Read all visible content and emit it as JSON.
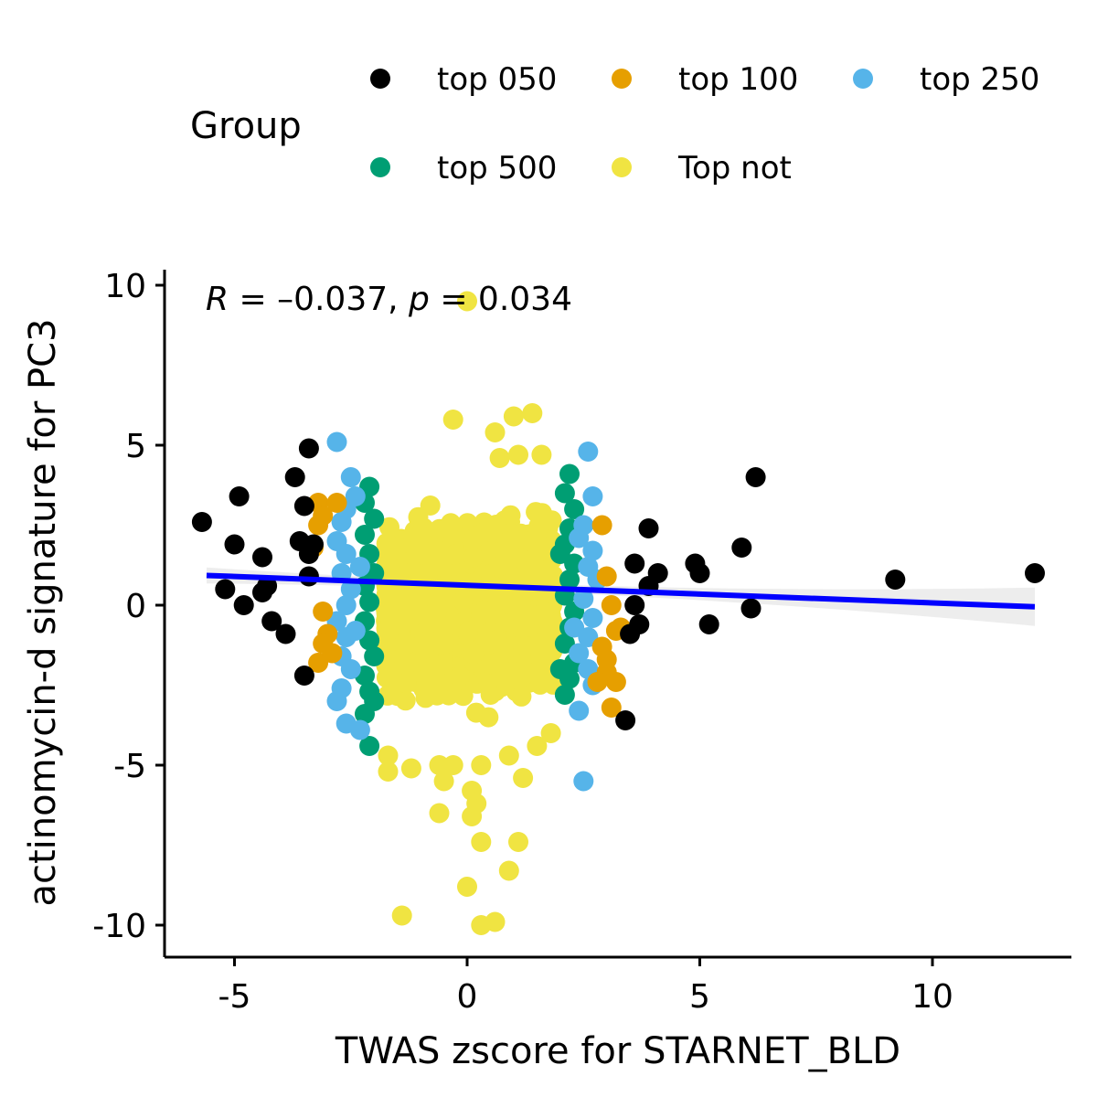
{
  "chart_data": {
    "type": "scatter",
    "title": "",
    "xlabel": "TWAS zscore for STARNET_BLD",
    "ylabel": "actinomycin-d signature for PC3",
    "xlim": [
      -6.5,
      13.0
    ],
    "ylim": [
      -11.0,
      10.5
    ],
    "x_ticks": [
      -5,
      0,
      5,
      10
    ],
    "x_tick_labels": [
      "-5",
      "0",
      "5",
      "10"
    ],
    "y_ticks": [
      10,
      5,
      0,
      -5,
      -10
    ],
    "y_tick_labels": [
      "10",
      "5",
      "0",
      "-5",
      "-10"
    ],
    "grid": false,
    "legend": {
      "title": "Group",
      "position": "top",
      "entries": [
        {
          "name": "top 050",
          "color": "#000000"
        },
        {
          "name": "top 100",
          "color": "#E69F00"
        },
        {
          "name": "top 250",
          "color": "#56B4E9"
        },
        {
          "name": "top 500",
          "color": "#009E73"
        },
        {
          "name": "Top not",
          "color": "#F0E442"
        }
      ]
    },
    "annotation": {
      "r_label": "R",
      "r_text": " = –0.037, ",
      "p_label": "p",
      "p_text": " = 0.034"
    },
    "regression": {
      "color": "#0000FF",
      "x": [
        -5.6,
        12.2
      ],
      "y": [
        0.93,
        -0.05
      ],
      "ci_upper_end": 0.6,
      "ci_lower_end": -0.7
    },
    "series": [
      {
        "name": "top 050",
        "color": "#000000",
        "points": [
          [
            -5.7,
            2.6
          ],
          [
            -4.9,
            3.4
          ],
          [
            -5.0,
            1.9
          ],
          [
            -5.2,
            0.5
          ],
          [
            -4.8,
            0.0
          ],
          [
            -4.4,
            1.5
          ],
          [
            -4.3,
            0.6
          ],
          [
            -4.4,
            0.4
          ],
          [
            -4.2,
            -0.5
          ],
          [
            -3.9,
            -0.9
          ],
          [
            -3.5,
            -2.2
          ],
          [
            -3.7,
            4.0
          ],
          [
            -3.4,
            4.9
          ],
          [
            -3.5,
            3.1
          ],
          [
            -3.6,
            2.0
          ],
          [
            -3.3,
            1.9
          ],
          [
            -3.4,
            1.6
          ],
          [
            -3.4,
            0.9
          ],
          [
            3.5,
            -0.9
          ],
          [
            3.6,
            0.0
          ],
          [
            3.7,
            -0.6
          ],
          [
            3.6,
            1.3
          ],
          [
            3.9,
            2.4
          ],
          [
            3.9,
            0.6
          ],
          [
            4.1,
            1.0
          ],
          [
            4.9,
            1.3
          ],
          [
            5.0,
            1.0
          ],
          [
            5.2,
            -0.6
          ],
          [
            5.9,
            1.8
          ],
          [
            6.1,
            -0.1
          ],
          [
            6.2,
            4.0
          ],
          [
            9.2,
            0.8
          ],
          [
            12.2,
            1.0
          ],
          [
            3.4,
            -3.6
          ]
        ]
      },
      {
        "name": "top 100",
        "color": "#E69F00",
        "points": [
          [
            -3.2,
            3.2
          ],
          [
            -3.1,
            2.8
          ],
          [
            -3.2,
            2.5
          ],
          [
            -3.3,
            1.8
          ],
          [
            -3.1,
            -0.2
          ],
          [
            -3.0,
            -0.9
          ],
          [
            -3.1,
            -1.2
          ],
          [
            -3.2,
            -1.8
          ],
          [
            -2.9,
            -1.5
          ],
          [
            -2.8,
            3.2
          ],
          [
            2.9,
            2.5
          ],
          [
            3.0,
            0.9
          ],
          [
            3.1,
            0.0
          ],
          [
            3.2,
            -0.8
          ],
          [
            2.9,
            -1.3
          ],
          [
            3.0,
            -1.7
          ],
          [
            3.2,
            -2.4
          ],
          [
            3.0,
            -2.1
          ],
          [
            3.1,
            -3.2
          ],
          [
            2.8,
            -2.4
          ],
          [
            3.3,
            -0.7
          ]
        ]
      },
      {
        "name": "top 250",
        "color": "#56B4E9",
        "points": [
          [
            -2.8,
            5.1
          ],
          [
            -2.5,
            4.0
          ],
          [
            -2.6,
            3.0
          ],
          [
            -2.7,
            2.6
          ],
          [
            -2.8,
            2.0
          ],
          [
            -2.6,
            1.6
          ],
          [
            -2.7,
            1.0
          ],
          [
            -2.5,
            0.5
          ],
          [
            -2.6,
            0.0
          ],
          [
            -2.8,
            -0.5
          ],
          [
            -2.6,
            -1.0
          ],
          [
            -2.7,
            -1.6
          ],
          [
            -2.5,
            -2.0
          ],
          [
            -2.7,
            -2.6
          ],
          [
            -2.8,
            -3.0
          ],
          [
            -2.6,
            -3.7
          ],
          [
            -2.3,
            -3.9
          ],
          [
            -2.4,
            3.4
          ],
          [
            -2.3,
            1.2
          ],
          [
            -2.4,
            -0.8
          ],
          [
            2.6,
            4.8
          ],
          [
            2.7,
            3.4
          ],
          [
            2.5,
            2.5
          ],
          [
            2.7,
            1.7
          ],
          [
            2.6,
            1.2
          ],
          [
            2.8,
            0.8
          ],
          [
            2.5,
            0.2
          ],
          [
            2.7,
            -0.4
          ],
          [
            2.6,
            -1.0
          ],
          [
            2.4,
            -1.5
          ],
          [
            2.6,
            -2.0
          ],
          [
            2.7,
            -2.5
          ],
          [
            2.4,
            -3.3
          ],
          [
            2.5,
            -5.5
          ],
          [
            2.3,
            -0.7
          ],
          [
            2.4,
            2.1
          ]
        ]
      },
      {
        "name": "top 500",
        "color": "#009E73",
        "points": [
          [
            -2.1,
            3.7
          ],
          [
            -2.2,
            3.2
          ],
          [
            -2.0,
            2.7
          ],
          [
            -2.2,
            2.2
          ],
          [
            -2.1,
            1.6
          ],
          [
            -2.0,
            1.0
          ],
          [
            -2.2,
            0.6
          ],
          [
            -2.1,
            0.1
          ],
          [
            -2.2,
            -0.5
          ],
          [
            -2.1,
            -1.1
          ],
          [
            -2.0,
            -1.6
          ],
          [
            -2.2,
            -2.2
          ],
          [
            -2.1,
            -2.7
          ],
          [
            -2.2,
            -3.4
          ],
          [
            -2.1,
            -4.4
          ],
          [
            -2.0,
            -3.0
          ],
          [
            2.2,
            4.1
          ],
          [
            2.1,
            3.5
          ],
          [
            2.3,
            3.0
          ],
          [
            2.2,
            2.4
          ],
          [
            2.1,
            1.9
          ],
          [
            2.3,
            1.3
          ],
          [
            2.2,
            0.8
          ],
          [
            2.1,
            0.3
          ],
          [
            2.3,
            -0.2
          ],
          [
            2.2,
            -0.7
          ],
          [
            2.1,
            -1.2
          ],
          [
            2.3,
            -1.8
          ],
          [
            2.2,
            -2.3
          ],
          [
            2.1,
            -2.8
          ],
          [
            2.0,
            -2.0
          ],
          [
            2.0,
            1.6
          ]
        ]
      },
      {
        "name": "Top not",
        "color": "#F0E442",
        "points": [
          [
            0.0,
            9.5
          ],
          [
            1.4,
            6.0
          ],
          [
            1.0,
            5.9
          ],
          [
            -0.3,
            5.8
          ],
          [
            0.6,
            5.4
          ],
          [
            1.6,
            4.7
          ],
          [
            1.1,
            4.7
          ],
          [
            0.7,
            4.6
          ],
          [
            -1.7,
            -5.2
          ],
          [
            -1.7,
            -4.7
          ],
          [
            -1.2,
            -5.1
          ],
          [
            -0.6,
            -5.0
          ],
          [
            -0.3,
            -5.0
          ],
          [
            0.3,
            -5.0
          ],
          [
            1.2,
            -5.4
          ],
          [
            0.9,
            -4.7
          ],
          [
            1.5,
            -4.4
          ],
          [
            1.8,
            -4.0
          ],
          [
            -0.6,
            -6.5
          ],
          [
            0.1,
            -6.6
          ],
          [
            0.2,
            -6.2
          ],
          [
            0.1,
            -5.8
          ],
          [
            0.3,
            -7.4
          ],
          [
            0.9,
            -8.3
          ],
          [
            1.1,
            -7.4
          ],
          [
            0.0,
            -8.8
          ],
          [
            -1.4,
            -9.7
          ],
          [
            0.3,
            -10.0
          ],
          [
            0.6,
            -9.9
          ],
          [
            -0.5,
            -5.5
          ]
        ]
      }
    ]
  }
}
